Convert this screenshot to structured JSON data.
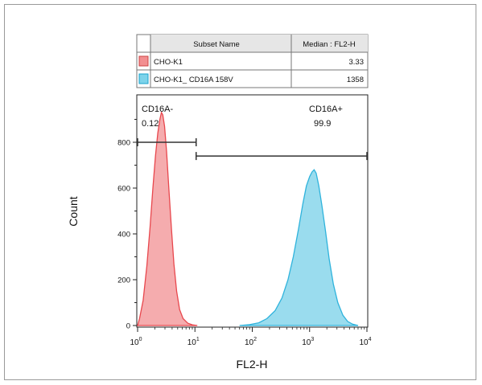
{
  "chart_data": {
    "type": "area",
    "title": "",
    "xlabel": "FL2-H",
    "ylabel": "Count",
    "x_scale": "log",
    "xlim": [
      1,
      10000
    ],
    "ylim": [
      0,
      1000
    ],
    "x_ticks": [
      {
        "value": 1,
        "base": "10",
        "exp": "0"
      },
      {
        "value": 10,
        "base": "10",
        "exp": "1"
      },
      {
        "value": 100,
        "base": "10",
        "exp": "2"
      },
      {
        "value": 1000,
        "base": "10",
        "exp": "3"
      },
      {
        "value": 10000,
        "base": "10",
        "exp": "4"
      }
    ],
    "y_ticks": [
      0,
      200,
      400,
      600,
      800
    ],
    "grid": false,
    "legend_table": {
      "headers": [
        "Subset Name",
        "Median : FL2-H"
      ],
      "rows": [
        {
          "name": "CHO-K1",
          "median": "3.33",
          "color": "#f28e90"
        },
        {
          "name": "CHO-K1_ CD16A 158V",
          "median": "1358",
          "color": "#7dd3ea"
        }
      ]
    },
    "series": [
      {
        "name": "CHO-K1",
        "fill": "#f4a3a5",
        "stroke": "#e8474d",
        "points": [
          [
            1,
            0
          ],
          [
            1.08,
            30
          ],
          [
            1.25,
            110
          ],
          [
            1.45,
            260
          ],
          [
            1.65,
            430
          ],
          [
            1.85,
            600
          ],
          [
            2.05,
            740
          ],
          [
            2.25,
            840
          ],
          [
            2.45,
            900
          ],
          [
            2.6,
            930
          ],
          [
            2.75,
            920
          ],
          [
            2.95,
            870
          ],
          [
            3.2,
            760
          ],
          [
            3.5,
            600
          ],
          [
            3.9,
            420
          ],
          [
            4.3,
            270
          ],
          [
            4.8,
            150
          ],
          [
            5.4,
            70
          ],
          [
            6.2,
            30
          ],
          [
            7.5,
            10
          ],
          [
            9,
            3
          ],
          [
            11,
            0
          ]
        ]
      },
      {
        "name": "CHO-K1_ CD16A 158V",
        "fill": "#8fd8ec",
        "stroke": "#2fb3dc",
        "points": [
          [
            60,
            0
          ],
          [
            90,
            4
          ],
          [
            130,
            12
          ],
          [
            180,
            30
          ],
          [
            250,
            65
          ],
          [
            330,
            120
          ],
          [
            420,
            200
          ],
          [
            520,
            300
          ],
          [
            640,
            420
          ],
          [
            760,
            530
          ],
          [
            880,
            610
          ],
          [
            1000,
            650
          ],
          [
            1100,
            670
          ],
          [
            1200,
            680
          ],
          [
            1300,
            665
          ],
          [
            1450,
            610
          ],
          [
            1650,
            520
          ],
          [
            1900,
            410
          ],
          [
            2200,
            290
          ],
          [
            2600,
            180
          ],
          [
            3100,
            100
          ],
          [
            3800,
            45
          ],
          [
            4600,
            18
          ],
          [
            5600,
            6
          ],
          [
            7000,
            0
          ]
        ]
      }
    ],
    "gates": [
      {
        "name": "CD16A-",
        "value": "0.12",
        "x_from": 1,
        "x_to": 10.5,
        "y": 800
      },
      {
        "name": "CD16A+",
        "value": "99.9",
        "x_from": 10.5,
        "x_to": 10000,
        "y": 740
      }
    ]
  }
}
